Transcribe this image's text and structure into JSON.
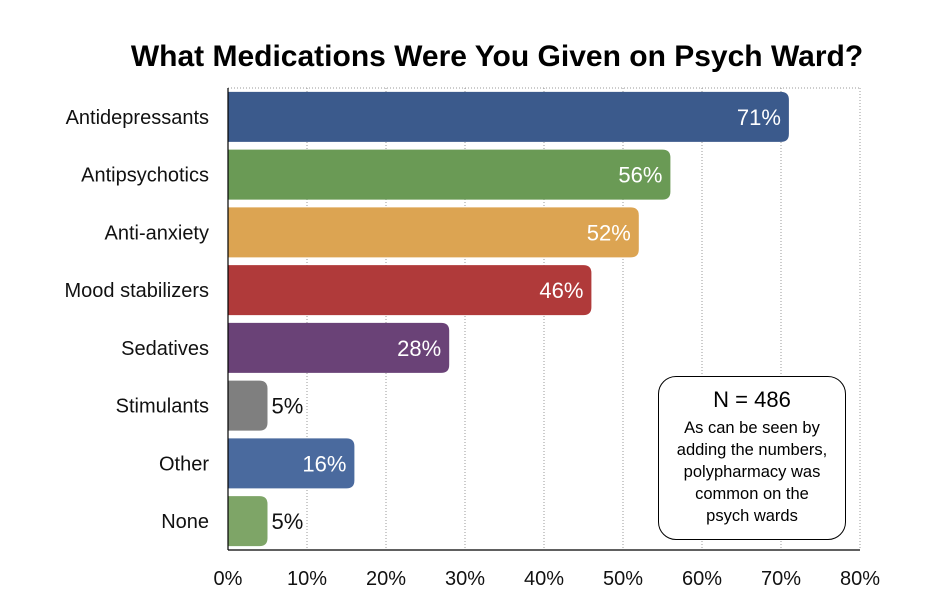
{
  "chart_data": {
    "type": "bar",
    "orientation": "horizontal",
    "title": "What Medications Were You Given on Psych Ward?",
    "categories": [
      "Antidepressants",
      "Antipsychotics",
      "Anti-anxiety",
      "Mood stabilizers",
      "Sedatives",
      "Stimulants",
      "Other",
      "None"
    ],
    "values": [
      71,
      56,
      52,
      46,
      28,
      5,
      16,
      5
    ],
    "value_labels": [
      "71%",
      "56%",
      "52%",
      "46%",
      "28%",
      "5%",
      "16%",
      "5%"
    ],
    "colors": [
      "#3b5a8c",
      "#6a9a55",
      "#dca452",
      "#b03a3a",
      "#6a4277",
      "#7f7f7f",
      "#4a6a9e",
      "#7ea567"
    ],
    "xlim": [
      0,
      80
    ],
    "x_ticks": [
      0,
      10,
      20,
      30,
      40,
      50,
      60,
      70,
      80
    ],
    "x_tick_labels": [
      "0%",
      "10%",
      "20%",
      "30%",
      "40%",
      "50%",
      "60%",
      "70%",
      "80%"
    ],
    "grid": "vertical dotted",
    "xlabel": "",
    "ylabel": ""
  },
  "annotation": {
    "n_text": "N = 486",
    "note_lines": [
      "As can be seen by",
      "adding the numbers,",
      "polypharmacy was",
      "common on the",
      "psych wards"
    ]
  }
}
